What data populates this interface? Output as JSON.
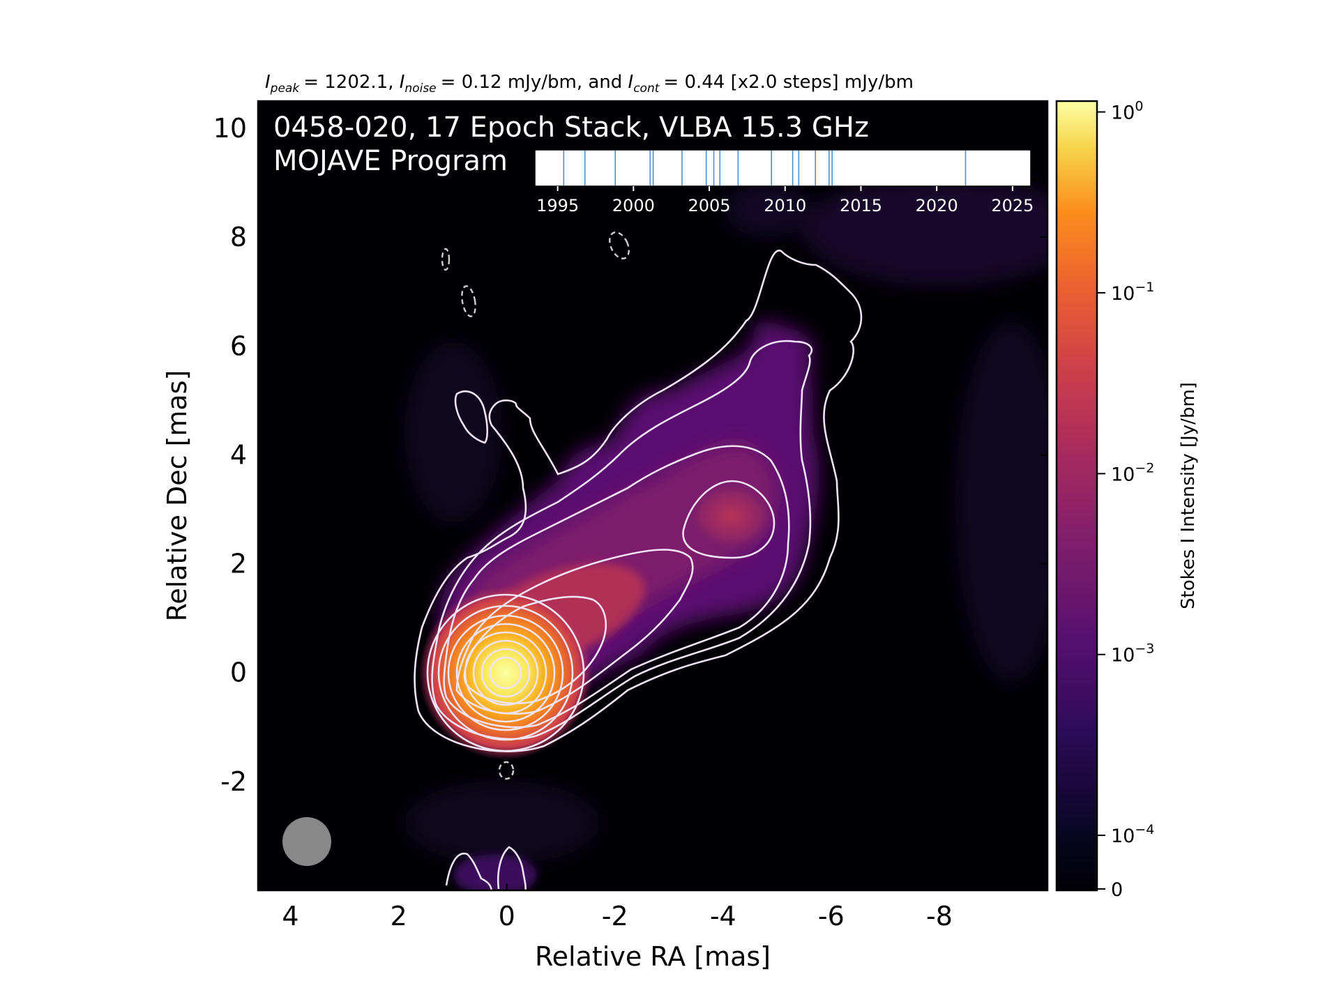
{
  "chart_data": {
    "type": "heatmap",
    "title_line": {
      "peak_symbol": "I",
      "peak_sub": "peak",
      "peak_value": "= 1202.1, ",
      "noise_symbol": "I",
      "noise_sub": "noise",
      "noise_value": "= 0.12 mJy/bm, and ",
      "cont_symbol": "I",
      "cont_sub": "cont",
      "cont_value": "= 0.44 [x2.0 steps] mJy/bm"
    },
    "annotation_line1": "0458-020, 17 Epoch Stack, VLBA 15.3 GHz",
    "annotation_line2": "MOJAVE Program",
    "xlabel": "Relative RA [mas]",
    "ylabel": "Relative Dec [mas]",
    "xlim": [
      4.6,
      -10
    ],
    "ylim": [
      -4,
      10.5
    ],
    "x_ticks": [
      {
        "value": 4,
        "label": "4"
      },
      {
        "value": 2,
        "label": "2"
      },
      {
        "value": 0,
        "label": "0"
      },
      {
        "value": -2,
        "label": "-2"
      },
      {
        "value": -4,
        "label": "-4"
      },
      {
        "value": -6,
        "label": "-6"
      },
      {
        "value": -8,
        "label": "-8"
      }
    ],
    "y_ticks": [
      {
        "value": 10,
        "label": "10"
      },
      {
        "value": 8,
        "label": "8"
      },
      {
        "value": 6,
        "label": "6"
      },
      {
        "value": 4,
        "label": "4"
      },
      {
        "value": 2,
        "label": "2"
      },
      {
        "value": 0,
        "label": "0"
      },
      {
        "value": -2,
        "label": "-2"
      }
    ],
    "colormap": "inferno",
    "colorbar": {
      "label": "Stokes I Intensity [Jy/bm]",
      "scale": "log",
      "ticks": [
        {
          "value": 1,
          "base": "10",
          "exp": "0"
        },
        {
          "value": 0.1,
          "base": "10",
          "exp": "−1"
        },
        {
          "value": 0.01,
          "base": "10",
          "exp": "−2"
        },
        {
          "value": 0.001,
          "base": "10",
          "exp": "−3"
        },
        {
          "value": 0.0001,
          "base": "10",
          "exp": "−4"
        },
        {
          "value": 0,
          "base": "0",
          "exp": ""
        }
      ]
    },
    "epoch_timeline": {
      "xlim": [
        1993.5,
        2026.2
      ],
      "ticks": [
        {
          "value": 1995,
          "label": "1995"
        },
        {
          "value": 2000,
          "label": "2000"
        },
        {
          "value": 2005,
          "label": "2005"
        },
        {
          "value": 2010,
          "label": "2010"
        },
        {
          "value": 2015,
          "label": "2015"
        },
        {
          "value": 2020,
          "label": "2020"
        },
        {
          "value": 2025,
          "label": "2025"
        }
      ],
      "epochs": [
        1995.4,
        1996.8,
        1998.8,
        2001.1,
        2001.3,
        2003.2,
        2004.8,
        2005.3,
        2005.7,
        2006.9,
        2009.1,
        2010.5,
        2010.9,
        2012.0,
        2012.9,
        2013.1,
        2021.9
      ],
      "epoch_color": "#4c8fd0"
    },
    "peak_position": {
      "x": 0,
      "y": 0
    },
    "beam": {
      "x": 3.6,
      "y": -3.1,
      "major_mas": 0.9,
      "minor_mas": 0.9,
      "color": "#888888"
    },
    "contour_color": "#efe3f5",
    "negative_contour_color": "#cfcfcf",
    "background_color": "#000004"
  }
}
